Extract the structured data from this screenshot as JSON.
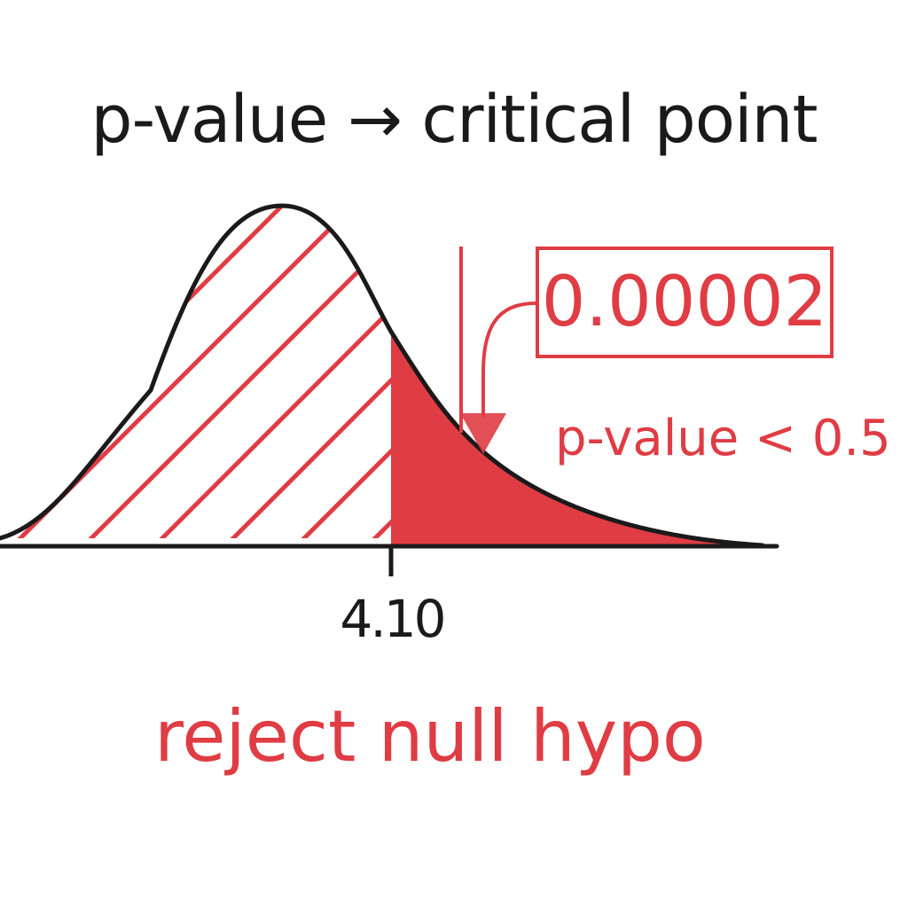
{
  "title": "p-value → critical point",
  "critical_value_label": "4.10",
  "p_value_label": "0.00002",
  "comparison_label": "p-value < 0.5",
  "conclusion_label": "reject null hypo",
  "colors": {
    "ink": "#1a1a1a",
    "accent": "#e03c44",
    "background": "#ffffff"
  }
}
